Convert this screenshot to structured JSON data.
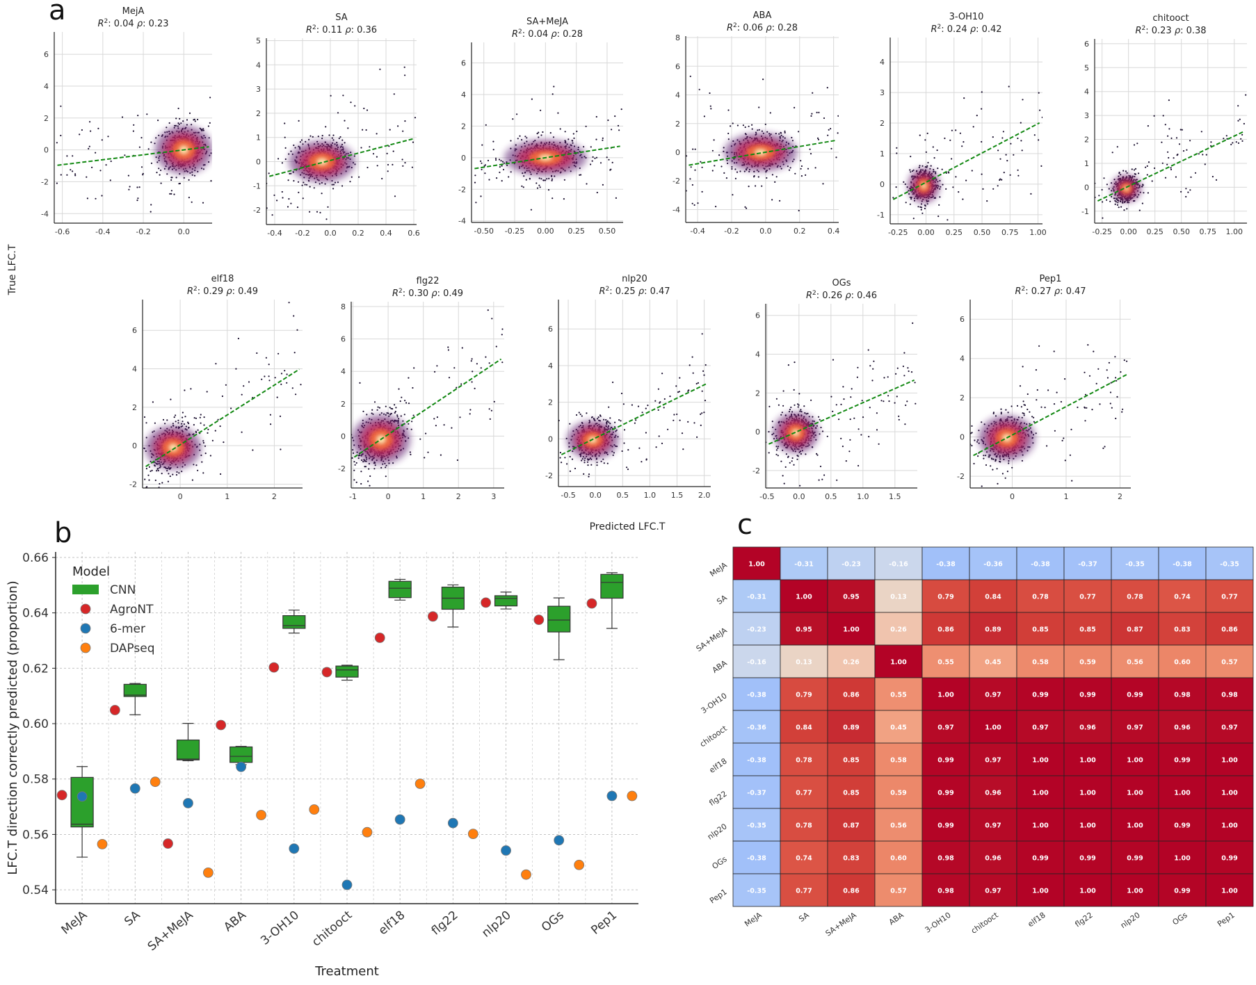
{
  "panel_labels": {
    "a": "a",
    "b": "b",
    "c": "c"
  },
  "chart_data": [
    {
      "type": "scatter",
      "panel": "a",
      "ylabel": "True LFC.T",
      "xlabel": "Predicted LFC.T",
      "subplots": [
        {
          "name": "MejA",
          "r2": "0.04",
          "rho": "0.23",
          "xticks": [
            -0.6,
            -0.4,
            -0.2,
            0.0
          ],
          "yticks": [
            -4,
            -2,
            0,
            2,
            4,
            6
          ],
          "xlim": [
            -0.64,
            0.14
          ],
          "ylim": [
            -4.6,
            7.4
          ],
          "center": [
            0.0,
            0.0
          ],
          "spread": [
            0.06,
            0.8
          ],
          "fit": {
            "slope": 1.55,
            "intercept": 0.0
          },
          "tickfmt": 1
        },
        {
          "name": "SA",
          "r2": "0.11",
          "rho": "0.36",
          "xticks": [
            -0.4,
            -0.2,
            0.0,
            0.2,
            0.4,
            0.6
          ],
          "yticks": [
            -2,
            -1,
            0,
            1,
            2,
            3,
            4,
            5
          ],
          "xlim": [
            -0.46,
            0.62
          ],
          "ylim": [
            -2.6,
            5.1
          ],
          "center": [
            -0.06,
            0.0
          ],
          "spread": [
            0.1,
            0.45
          ],
          "fit": {
            "slope": 1.5,
            "intercept": 0.05
          },
          "tickfmt": 1
        },
        {
          "name": "SA+MeJA",
          "r2": "0.04",
          "rho": "0.28",
          "xticks": [
            -0.5,
            -0.25,
            0.0,
            0.25,
            0.5
          ],
          "yticks": [
            -4,
            -2,
            0,
            2,
            4,
            6
          ],
          "xlim": [
            -0.6,
            0.63
          ],
          "ylim": [
            -4.1,
            7.3
          ],
          "center": [
            0.0,
            0.0
          ],
          "spread": [
            0.14,
            0.6
          ],
          "fit": {
            "slope": 1.2,
            "intercept": 0.0
          },
          "tickfmt": 2
        },
        {
          "name": "ABA",
          "r2": "0.06",
          "rho": "0.28",
          "xticks": [
            -0.4,
            -0.2,
            0.0,
            0.2,
            0.4
          ],
          "yticks": [
            -4,
            -2,
            0,
            2,
            4,
            6,
            8
          ],
          "xlim": [
            -0.47,
            0.43
          ],
          "ylim": [
            -4.9,
            8.1
          ],
          "center": [
            -0.03,
            0.0
          ],
          "spread": [
            0.09,
            0.7
          ],
          "fit": {
            "slope": 2.0,
            "intercept": 0.0
          },
          "tickfmt": 1
        },
        {
          "name": "3-OH10",
          "r2": "0.24",
          "rho": "0.42",
          "xticks": [
            -0.25,
            0.0,
            0.25,
            0.5,
            0.75,
            1.0
          ],
          "yticks": [
            -1,
            0,
            1,
            2,
            3,
            4
          ],
          "xlim": [
            -0.32,
            1.04
          ],
          "ylim": [
            -1.3,
            4.8
          ],
          "center": [
            -0.02,
            -0.05
          ],
          "spread": [
            0.06,
            0.3
          ],
          "fit": {
            "slope": 1.92,
            "intercept": 0.06
          },
          "tickfmt": 2
        },
        {
          "name": "chitooct",
          "r2": "0.23",
          "rho": "0.38",
          "xticks": [
            -0.25,
            0.0,
            0.25,
            0.5,
            0.75,
            1.0
          ],
          "yticks": [
            -1,
            0,
            1,
            2,
            3,
            4,
            5,
            6
          ],
          "xlim": [
            -0.32,
            1.12
          ],
          "ylim": [
            -1.5,
            6.2
          ],
          "center": [
            -0.02,
            -0.05
          ],
          "spread": [
            0.06,
            0.3
          ],
          "fit": {
            "slope": 2.1,
            "intercept": 0.04
          },
          "tickfmt": 2
        },
        {
          "name": "elf18",
          "r2": "0.29",
          "rho": "0.49",
          "xticks": [
            0,
            1,
            2
          ],
          "yticks": [
            -2,
            0,
            2,
            4,
            6
          ],
          "xlim": [
            -0.8,
            2.6
          ],
          "ylim": [
            -2.2,
            7.6
          ],
          "center": [
            -0.15,
            -0.1
          ],
          "spread": [
            0.25,
            0.6
          ],
          "fit": {
            "slope": 1.55,
            "intercept": 0.05
          },
          "tickfmt": 0
        },
        {
          "name": "flg22",
          "r2": "0.30",
          "rho": "0.49",
          "xticks": [
            -1,
            0,
            1,
            2,
            3
          ],
          "yticks": [
            -2,
            0,
            2,
            4,
            6,
            8
          ],
          "xlim": [
            -1.05,
            3.3
          ],
          "ylim": [
            -3.2,
            8.3
          ],
          "center": [
            -0.2,
            -0.2
          ],
          "spread": [
            0.35,
            0.8
          ],
          "fit": {
            "slope": 1.45,
            "intercept": 0.1
          },
          "tickfmt": 0
        },
        {
          "name": "nlp20",
          "r2": "0.25",
          "rho": "0.47",
          "xticks": [
            -0.5,
            0.0,
            0.5,
            1.0,
            1.5,
            2.0
          ],
          "yticks": [
            -2,
            0,
            2,
            4,
            6
          ],
          "xlim": [
            -0.68,
            2.12
          ],
          "ylim": [
            -2.6,
            7.6
          ],
          "center": [
            -0.05,
            -0.05
          ],
          "spread": [
            0.2,
            0.55
          ],
          "fit": {
            "slope": 1.45,
            "intercept": 0.05
          },
          "tickfmt": 1
        },
        {
          "name": "OGs",
          "r2": "0.26",
          "rho": "0.46",
          "xticks": [
            -0.5,
            0.0,
            0.5,
            1.0,
            1.5
          ],
          "yticks": [
            -2,
            0,
            2,
            4,
            6
          ],
          "xlim": [
            -0.52,
            1.85
          ],
          "ylim": [
            -2.9,
            6.6
          ],
          "center": [
            -0.05,
            -0.05
          ],
          "spread": [
            0.15,
            0.55
          ],
          "fit": {
            "slope": 1.45,
            "intercept": 0.05
          },
          "tickfmt": 1
        },
        {
          "name": "Pep1",
          "r2": "0.27",
          "rho": "0.47",
          "xticks": [
            0,
            1,
            2
          ],
          "yticks": [
            -2,
            0,
            2,
            4,
            6
          ],
          "xlim": [
            -0.78,
            2.2
          ],
          "ylim": [
            -2.6,
            7.0
          ],
          "center": [
            -0.1,
            -0.05
          ],
          "spread": [
            0.22,
            0.6
          ],
          "fit": {
            "slope": 1.45,
            "intercept": 0.1
          },
          "tickfmt": 0
        }
      ]
    },
    {
      "type": "box",
      "panel": "b",
      "xlabel": "Treatment",
      "ylabel": "LFC.T direction correctly predicted (proportion)",
      "ylim": [
        0.535,
        0.662
      ],
      "yticks": [
        "0.54",
        "0.56",
        "0.58",
        "0.60",
        "0.62",
        "0.64",
        "0.66"
      ],
      "ytick_values": [
        0.54,
        0.56,
        0.58,
        0.6,
        0.62,
        0.64,
        0.66
      ],
      "categories": [
        "MeJA",
        "SA",
        "SA+MeJA",
        "ABA",
        "3-OH10",
        "chitooct",
        "elf18",
        "flg22",
        "nlp20",
        "OGs",
        "Pep1"
      ],
      "legend_title": "Model",
      "legend": [
        "CNN",
        "AgroNT",
        "6-mer",
        "DAPseq"
      ],
      "colors": {
        "CNN": "#2ca02c",
        "AgroNT": "#d62728",
        "6-mer": "#1f77b4",
        "DAPseq": "#ff7f0e"
      },
      "cnn_boxes": [
        {
          "min": 0.5518,
          "q1": 0.5627,
          "median": 0.5637,
          "q3": 0.5806,
          "max": 0.5845
        },
        {
          "min": 0.6032,
          "q1": 0.6098,
          "median": 0.6103,
          "q3": 0.6142,
          "max": 0.6145
        },
        {
          "min": 0.5866,
          "q1": 0.5869,
          "median": 0.5872,
          "q3": 0.5941,
          "max": 0.6001
        },
        {
          "min": 0.5852,
          "q1": 0.586,
          "median": 0.5882,
          "q3": 0.5916,
          "max": 0.5918
        },
        {
          "min": 0.6327,
          "q1": 0.6344,
          "median": 0.6354,
          "q3": 0.639,
          "max": 0.641
        },
        {
          "min": 0.6157,
          "q1": 0.6168,
          "median": 0.6194,
          "q3": 0.6208,
          "max": 0.6211
        },
        {
          "min": 0.6446,
          "q1": 0.6455,
          "median": 0.6489,
          "q3": 0.6514,
          "max": 0.6521
        },
        {
          "min": 0.6349,
          "q1": 0.6413,
          "median": 0.6453,
          "q3": 0.6493,
          "max": 0.6501
        },
        {
          "min": 0.6414,
          "q1": 0.6425,
          "median": 0.6452,
          "q3": 0.6462,
          "max": 0.6475
        },
        {
          "min": 0.6231,
          "q1": 0.6331,
          "median": 0.6374,
          "q3": 0.6424,
          "max": 0.6454
        },
        {
          "min": 0.6344,
          "q1": 0.6453,
          "median": 0.651,
          "q3": 0.6539,
          "max": 0.6545
        }
      ],
      "agront": [
        0.5742,
        0.6049,
        0.5567,
        0.5995,
        0.6203,
        0.6186,
        0.631,
        0.6387,
        0.6437,
        0.6375,
        0.6434
      ],
      "kmer6": [
        0.5737,
        0.5766,
        0.5713,
        0.5844,
        0.5549,
        0.5418,
        0.5654,
        0.5641,
        0.5542,
        0.5579,
        0.5739
      ],
      "dapseq": [
        0.5565,
        0.579,
        0.5462,
        0.567,
        0.569,
        0.5608,
        0.5783,
        0.5602,
        0.5455,
        0.549,
        0.5739
      ]
    },
    {
      "type": "heatmap",
      "panel": "c",
      "labels": [
        "MeJA",
        "SA",
        "SA+MeJA",
        "ABA",
        "3-OH10",
        "chitooct",
        "elf18",
        "flg22",
        "nlp20",
        "OGs",
        "Pep1"
      ],
      "cell_text": [
        [
          "1.00",
          "-0.31",
          "-0.23",
          "-0.16",
          "-0.38",
          "-0.36",
          "-0.38",
          "-0.37",
          "-0.35",
          "-0.38",
          "-0.35"
        ],
        [
          "-0.31",
          "1.00",
          "0.95",
          "0.13",
          "0.79",
          "0.84",
          "0.78",
          "0.77",
          "0.78",
          "0.74",
          "0.77"
        ],
        [
          "-0.23",
          "0.95",
          "1.00",
          "0.26",
          "0.86",
          "0.89",
          "0.85",
          "0.85",
          "0.87",
          "0.83",
          "0.86"
        ],
        [
          "-0.16",
          "0.13",
          "0.26",
          "1.00",
          "0.55",
          "0.45",
          "0.58",
          "0.59",
          "0.56",
          "0.60",
          "0.57"
        ],
        [
          "-0.38",
          "0.79",
          "0.86",
          "0.55",
          "1.00",
          "0.97",
          "0.99",
          "0.99",
          "0.99",
          "0.98",
          "0.98"
        ],
        [
          "-0.36",
          "0.84",
          "0.89",
          "0.45",
          "0.97",
          "1.00",
          "0.97",
          "0.96",
          "0.97",
          "0.96",
          "0.97"
        ],
        [
          "-0.38",
          "0.78",
          "0.85",
          "0.58",
          "0.99",
          "0.97",
          "1.00",
          "1.00",
          "1.00",
          "0.99",
          "1.00"
        ],
        [
          "-0.37",
          "0.77",
          "0.85",
          "0.59",
          "0.99",
          "0.96",
          "1.00",
          "1.00",
          "1.00",
          "1.00",
          "1.00"
        ],
        [
          "-0.35",
          "0.78",
          "0.87",
          "0.56",
          "0.99",
          "0.97",
          "1.00",
          "1.00",
          "1.00",
          "0.99",
          "1.00"
        ],
        [
          "-0.38",
          "0.74",
          "0.83",
          "0.60",
          "0.98",
          "0.96",
          "0.99",
          "0.99",
          "0.99",
          "1.00",
          "0.99"
        ],
        [
          "-0.35",
          "0.77",
          "0.86",
          "0.57",
          "0.98",
          "0.97",
          "1.00",
          "1.00",
          "1.00",
          "0.99",
          "1.00"
        ]
      ]
    }
  ]
}
